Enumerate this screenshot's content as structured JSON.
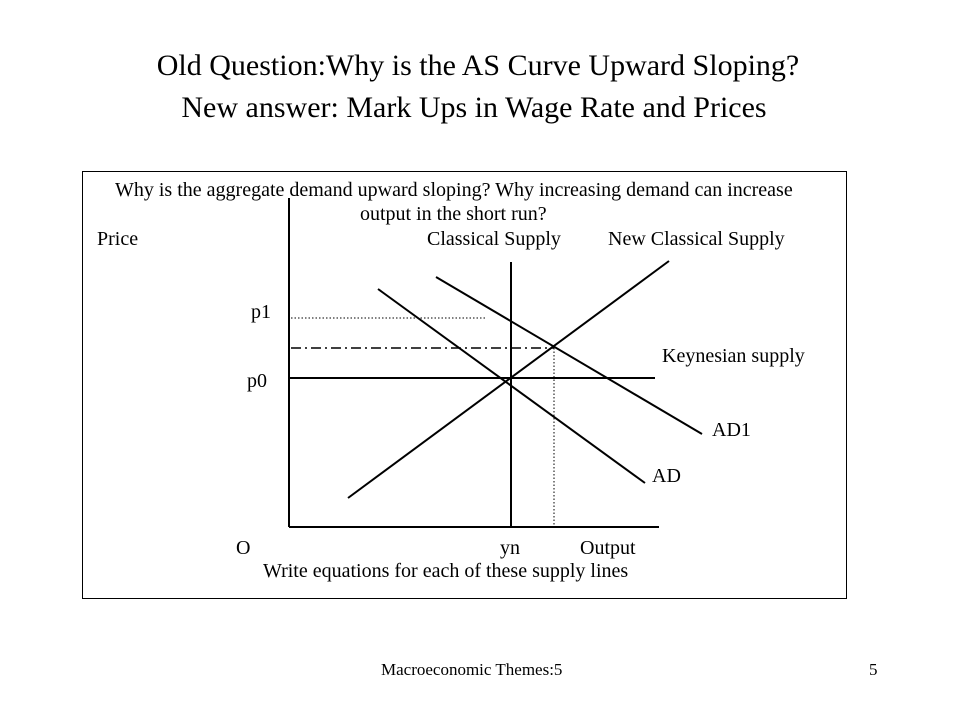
{
  "slide": {
    "title": "Old Question:Why is the AS Curve Upward Sloping?",
    "subtitle": "New answer: Mark Ups in Wage Rate and Prices"
  },
  "diagram": {
    "question_line1": "Why is the aggregate demand upward sloping? Why increasing  demand  can increase",
    "question_line2": "output in the short run?",
    "y_axis_label": "Price",
    "x_axis_label": "Output",
    "origin_label": "O",
    "yn_label": "yn",
    "p1_label": "p1",
    "p0_label": "p0",
    "classical_supply_label": "Classical Supply",
    "new_classical_supply_label": "New Classical Supply",
    "keynesian_supply_label": "Keynesian supply",
    "ad1_label": "AD1",
    "ad_label": "AD",
    "footnote": "Write equations for each of these supply lines"
  },
  "footer": {
    "left": "Macroeconomic Themes:5",
    "right": "5"
  }
}
